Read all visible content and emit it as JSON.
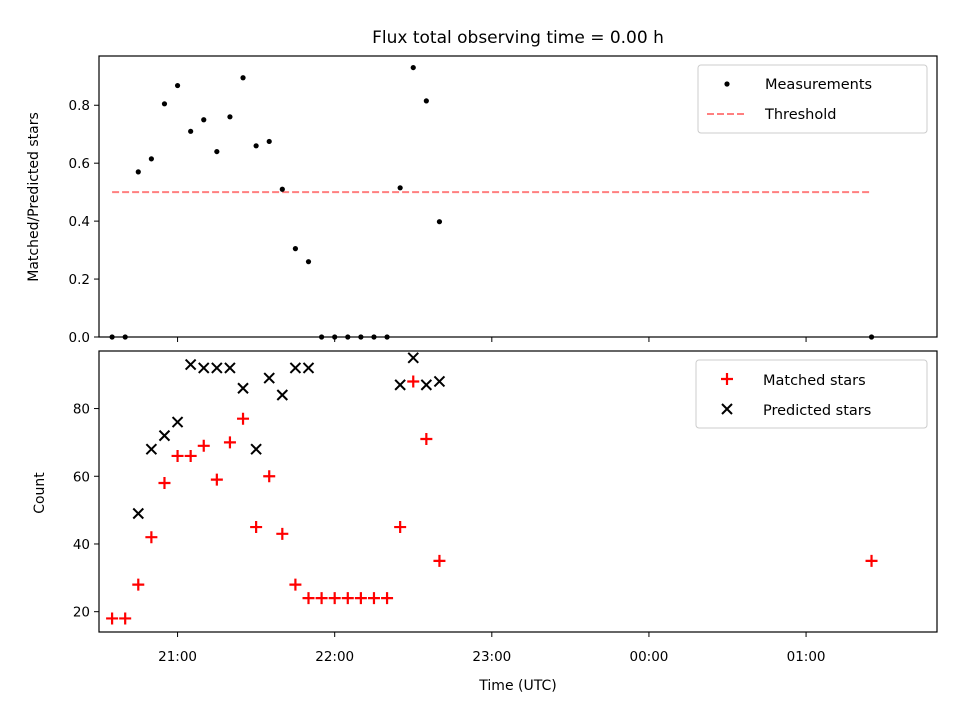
{
  "chart_data": [
    {
      "type": "scatter",
      "title": "Flux total observing time = 0.00 h",
      "xlabel": "",
      "ylabel": "Matched/Predicted stars",
      "xlim": [
        "20:30",
        "01:50"
      ],
      "ylim": [
        0,
        0.97
      ],
      "yticks": [
        0.0,
        0.2,
        0.4,
        0.6,
        0.8
      ],
      "ytick_labels": [
        "0.0",
        "0.2",
        "0.4",
        "0.6",
        "0.8"
      ],
      "legend_position": "top-right",
      "series": [
        {
          "name": "Measurements",
          "marker": "dot",
          "color": "#000000",
          "points": [
            {
              "x": "20:35",
              "y": 0.0
            },
            {
              "x": "20:40",
              "y": 0.0
            },
            {
              "x": "20:45",
              "y": 0.57
            },
            {
              "x": "20:50",
              "y": 0.615
            },
            {
              "x": "20:55",
              "y": 0.805
            },
            {
              "x": "21:00",
              "y": 0.868
            },
            {
              "x": "21:05",
              "y": 0.71
            },
            {
              "x": "21:10",
              "y": 0.75
            },
            {
              "x": "21:15",
              "y": 0.64
            },
            {
              "x": "21:20",
              "y": 0.76
            },
            {
              "x": "21:25",
              "y": 0.895
            },
            {
              "x": "21:30",
              "y": 0.66
            },
            {
              "x": "21:35",
              "y": 0.675
            },
            {
              "x": "21:40",
              "y": 0.51
            },
            {
              "x": "21:45",
              "y": 0.305
            },
            {
              "x": "21:50",
              "y": 0.26
            },
            {
              "x": "21:55",
              "y": 0.0
            },
            {
              "x": "22:00",
              "y": 0.0
            },
            {
              "x": "22:05",
              "y": 0.0
            },
            {
              "x": "22:10",
              "y": 0.0
            },
            {
              "x": "22:15",
              "y": 0.0
            },
            {
              "x": "22:20",
              "y": 0.0
            },
            {
              "x": "22:25",
              "y": 0.515
            },
            {
              "x": "22:30",
              "y": 0.93
            },
            {
              "x": "22:35",
              "y": 0.815
            },
            {
              "x": "22:40",
              "y": 0.398
            },
            {
              "x": "01:25",
              "y": 0.0
            }
          ]
        },
        {
          "name": "Threshold",
          "type": "line",
          "style": "dashed",
          "color": "#ff7f7f",
          "points": [
            {
              "x": "20:35",
              "y": 0.5
            },
            {
              "x": "01:25",
              "y": 0.5
            }
          ]
        }
      ]
    },
    {
      "type": "scatter",
      "title": "",
      "xlabel": "Time (UTC)",
      "ylabel": "Count",
      "xlim": [
        "20:30",
        "01:50"
      ],
      "ylim": [
        14,
        97
      ],
      "xticks": [
        "21:00",
        "22:00",
        "23:00",
        "00:00",
        "01:00"
      ],
      "xtick_labels": [
        "21:00",
        "22:00",
        "23:00",
        "00:00",
        "01:00"
      ],
      "yticks": [
        20,
        40,
        60,
        80
      ],
      "ytick_labels": [
        "20",
        "40",
        "60",
        "80"
      ],
      "legend_position": "top-right",
      "series": [
        {
          "name": "Matched stars",
          "marker": "plus",
          "color": "#ff0000",
          "points": [
            {
              "x": "20:35",
              "y": 18
            },
            {
              "x": "20:40",
              "y": 18
            },
            {
              "x": "20:45",
              "y": 28
            },
            {
              "x": "20:50",
              "y": 42
            },
            {
              "x": "20:55",
              "y": 58
            },
            {
              "x": "21:00",
              "y": 66
            },
            {
              "x": "21:05",
              "y": 66
            },
            {
              "x": "21:10",
              "y": 69
            },
            {
              "x": "21:15",
              "y": 59
            },
            {
              "x": "21:20",
              "y": 70
            },
            {
              "x": "21:25",
              "y": 77
            },
            {
              "x": "21:30",
              "y": 45
            },
            {
              "x": "21:35",
              "y": 60
            },
            {
              "x": "21:40",
              "y": 43
            },
            {
              "x": "21:45",
              "y": 28
            },
            {
              "x": "21:50",
              "y": 24
            },
            {
              "x": "21:55",
              "y": 24
            },
            {
              "x": "22:00",
              "y": 24
            },
            {
              "x": "22:05",
              "y": 24
            },
            {
              "x": "22:10",
              "y": 24
            },
            {
              "x": "22:15",
              "y": 24
            },
            {
              "x": "22:20",
              "y": 24
            },
            {
              "x": "22:25",
              "y": 45
            },
            {
              "x": "22:30",
              "y": 88
            },
            {
              "x": "22:35",
              "y": 71
            },
            {
              "x": "22:40",
              "y": 35
            },
            {
              "x": "01:25",
              "y": 35
            }
          ]
        },
        {
          "name": "Predicted stars",
          "marker": "x",
          "color": "#000000",
          "points": [
            {
              "x": "20:45",
              "y": 49
            },
            {
              "x": "20:50",
              "y": 68
            },
            {
              "x": "20:55",
              "y": 72
            },
            {
              "x": "21:00",
              "y": 76
            },
            {
              "x": "21:05",
              "y": 93
            },
            {
              "x": "21:10",
              "y": 92
            },
            {
              "x": "21:15",
              "y": 92
            },
            {
              "x": "21:20",
              "y": 92
            },
            {
              "x": "21:25",
              "y": 86
            },
            {
              "x": "21:30",
              "y": 68
            },
            {
              "x": "21:35",
              "y": 89
            },
            {
              "x": "21:40",
              "y": 84
            },
            {
              "x": "21:45",
              "y": 92
            },
            {
              "x": "21:50",
              "y": 92
            },
            {
              "x": "22:25",
              "y": 87
            },
            {
              "x": "22:30",
              "y": 95
            },
            {
              "x": "22:35",
              "y": 87
            },
            {
              "x": "22:40",
              "y": 88
            }
          ]
        }
      ]
    }
  ]
}
